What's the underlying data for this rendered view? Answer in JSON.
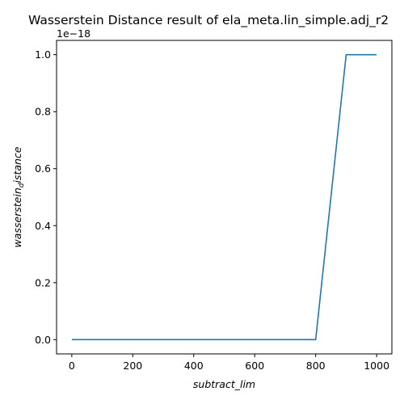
{
  "chart_data": {
    "type": "line",
    "title": "Wasserstein Distance result of ela_meta.lin_simple.adj_r2",
    "xlabel": "subtract_lim",
    "ylabel": "wasserstein_distance",
    "y_offset_label": "1e−18",
    "x": [
      0,
      100,
      200,
      300,
      400,
      500,
      600,
      700,
      800,
      900,
      1000
    ],
    "series": [
      {
        "values": [
          0,
          0,
          0,
          0,
          0,
          0,
          0,
          0,
          0,
          1.0,
          1.0
        ],
        "color": "#1f77b4"
      }
    ],
    "xlim": [
      -50,
      1050
    ],
    "ylim": [
      -0.05,
      1.05
    ],
    "xticks": [
      0,
      200,
      400,
      600,
      800,
      1000
    ],
    "xtick_labels": [
      "0",
      "200",
      "400",
      "600",
      "800",
      "1000"
    ],
    "yticks": [
      0.0,
      0.2,
      0.4,
      0.6,
      0.8,
      1.0
    ],
    "ytick_labels": [
      "0.0",
      "0.2",
      "0.4",
      "0.6",
      "0.8",
      "1.0"
    ],
    "grid": false,
    "legend": false
  }
}
